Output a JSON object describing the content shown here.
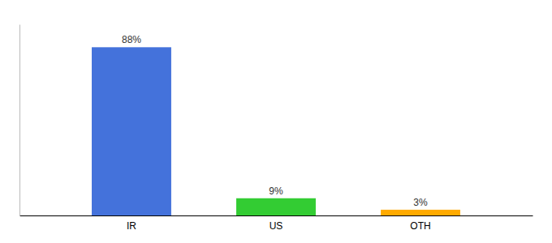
{
  "chart_data": {
    "type": "bar",
    "categories": [
      "IR",
      "US",
      "OTH"
    ],
    "values": [
      88,
      9,
      3
    ],
    "value_labels": [
      "88%",
      "9%",
      "3%"
    ],
    "colors": [
      "#4472db",
      "#33cc33",
      "#ffaa00"
    ],
    "ylim": [
      0,
      100
    ],
    "grid": false,
    "data_labels": true,
    "tick_labels": "x"
  }
}
